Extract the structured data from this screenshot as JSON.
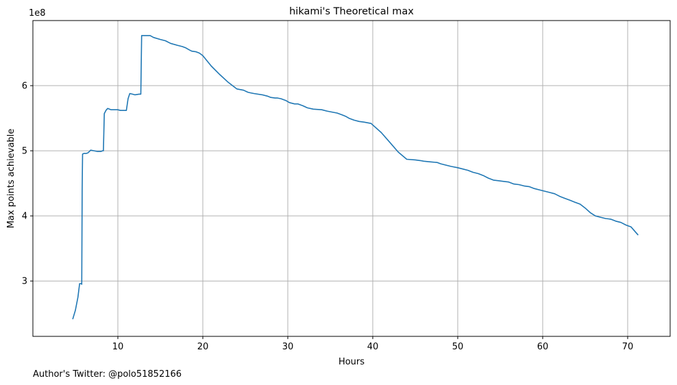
{
  "chart_data": {
    "type": "line",
    "title": "hikami's Theoretical max",
    "xlabel": "Hours",
    "ylabel": "Max points achievable",
    "y_multiplier_label": "1e8",
    "xlim": [
      0,
      75
    ],
    "ylim": [
      2.15,
      7.0
    ],
    "x_ticks": [
      10,
      20,
      30,
      40,
      50,
      60,
      70
    ],
    "x_tick_labels": [
      "10",
      "20",
      "30",
      "40",
      "50",
      "60",
      "70"
    ],
    "y_ticks": [
      3,
      4,
      5,
      6
    ],
    "y_tick_labels": [
      "3",
      "4",
      "5",
      "6"
    ],
    "grid": true,
    "line_color": "#1f77b4",
    "series": [
      {
        "x": [
          4.7,
          5.0,
          5.3,
          5.5,
          5.7,
          5.75,
          5.8,
          5.85,
          6.0,
          6.3,
          6.5,
          6.8,
          7.2,
          7.6,
          8.0,
          8.2,
          8.3,
          8.4,
          8.6,
          8.8,
          9.2,
          10.0,
          10.3,
          11.0,
          11.2,
          11.4,
          11.7,
          12.0,
          12.5,
          12.7,
          12.8,
          13.1,
          13.5,
          13.8,
          14.2,
          15.0,
          15.6,
          16.2,
          17.0,
          17.6,
          18.0,
          18.4,
          18.7,
          19.2,
          19.6,
          20.0,
          21.0,
          22.0,
          23.0,
          24.0,
          24.8,
          25.3,
          25.6,
          26.0,
          27.0,
          27.6,
          28.0,
          28.5,
          28.8,
          29.2,
          29.8,
          30.2,
          30.8,
          31.2,
          31.8,
          32.3,
          33.0,
          34.0,
          34.6,
          35.0,
          35.8,
          36.4,
          36.8,
          37.2,
          37.8,
          38.4,
          39.0,
          39.8,
          41.0,
          42.0,
          43.0,
          44.0,
          45.0,
          45.6,
          46.0,
          46.8,
          47.6,
          48.0,
          48.6,
          49.2,
          50.0,
          50.6,
          51.2,
          51.8,
          52.4,
          53.0,
          53.6,
          54.2,
          54.8,
          55.4,
          56.0,
          56.6,
          57.2,
          57.8,
          58.4,
          59.0,
          59.6,
          60.2,
          60.8,
          61.4,
          62.0,
          62.6,
          63.2,
          63.8,
          64.4,
          65.0,
          65.6,
          66.2,
          66.8,
          67.4,
          68.0,
          68.6,
          69.2,
          69.8,
          70.4,
          71.2
        ],
        "y": [
          2.42,
          2.55,
          2.75,
          2.96,
          2.96,
          2.95,
          4.4,
          4.95,
          4.96,
          4.96,
          4.97,
          5.01,
          5.0,
          4.99,
          4.99,
          5.0,
          5.0,
          5.57,
          5.62,
          5.65,
          5.63,
          5.63,
          5.62,
          5.62,
          5.8,
          5.88,
          5.87,
          5.86,
          5.87,
          5.87,
          6.77,
          6.77,
          6.77,
          6.77,
          6.74,
          6.71,
          6.69,
          6.65,
          6.62,
          6.6,
          6.58,
          6.55,
          6.53,
          6.52,
          6.5,
          6.46,
          6.3,
          6.17,
          6.05,
          5.95,
          5.93,
          5.9,
          5.89,
          5.88,
          5.86,
          5.84,
          5.82,
          5.81,
          5.81,
          5.8,
          5.77,
          5.74,
          5.72,
          5.72,
          5.69,
          5.66,
          5.64,
          5.63,
          5.61,
          5.6,
          5.58,
          5.55,
          5.53,
          5.5,
          5.47,
          5.45,
          5.44,
          5.42,
          5.28,
          5.13,
          4.98,
          4.87,
          4.86,
          4.85,
          4.84,
          4.83,
          4.82,
          4.8,
          4.78,
          4.76,
          4.74,
          4.72,
          4.7,
          4.67,
          4.65,
          4.62,
          4.58,
          4.55,
          4.54,
          4.53,
          4.52,
          4.49,
          4.48,
          4.46,
          4.45,
          4.42,
          4.4,
          4.38,
          4.36,
          4.34,
          4.3,
          4.27,
          4.24,
          4.21,
          4.18,
          4.12,
          4.05,
          4.0,
          3.98,
          3.96,
          3.95,
          3.92,
          3.9,
          3.86,
          3.83,
          3.71
        ]
      }
    ]
  },
  "footer": {
    "author_twitter": "Author's Twitter: @polo51852166"
  }
}
